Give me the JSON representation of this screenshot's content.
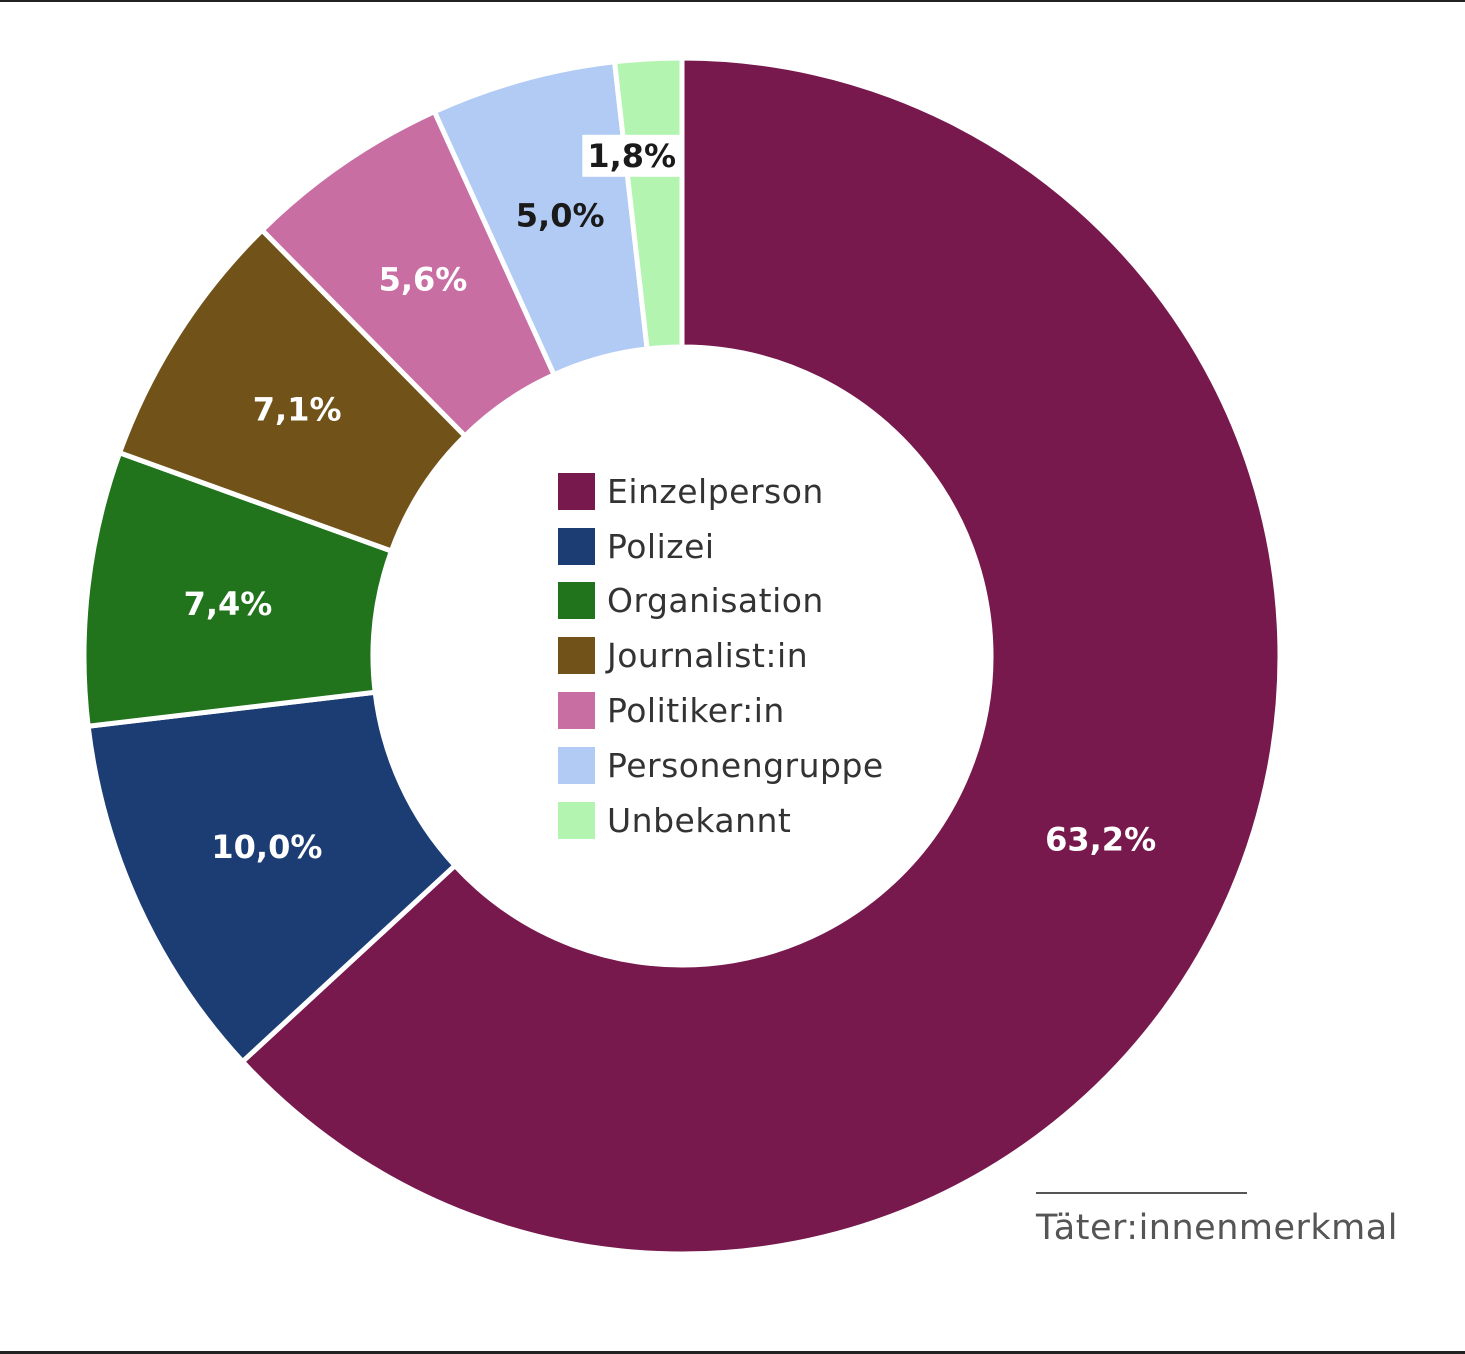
{
  "chart_data": {
    "type": "pie",
    "variant": "donut",
    "start": "top, clockwise",
    "legend_position": "center",
    "categories": [
      "Einzelperson",
      "Polizei",
      "Organisation",
      "Journalist:in",
      "Politiker:in",
      "Personengruppe",
      "Unbekannt"
    ],
    "values": [
      63.2,
      10.0,
      7.4,
      7.1,
      5.6,
      5.0,
      1.8
    ],
    "data_labels": [
      "63,2%",
      "10,0%",
      "7,4%",
      "7,1%",
      "5,6%",
      "5,0%",
      "1,8%"
    ],
    "colors": [
      "#78194d",
      "#1c3d74",
      "#21731c",
      "#71531a",
      "#c96ea3",
      "#b1cbf5",
      "#b3f4b1"
    ],
    "label_colors": [
      "#ffffff",
      "#ffffff",
      "#ffffff",
      "#ffffff",
      "#ffffff",
      "#1a1a1a",
      "#1a1a1a"
    ]
  },
  "source_note": "Täter:innenmerkmal"
}
